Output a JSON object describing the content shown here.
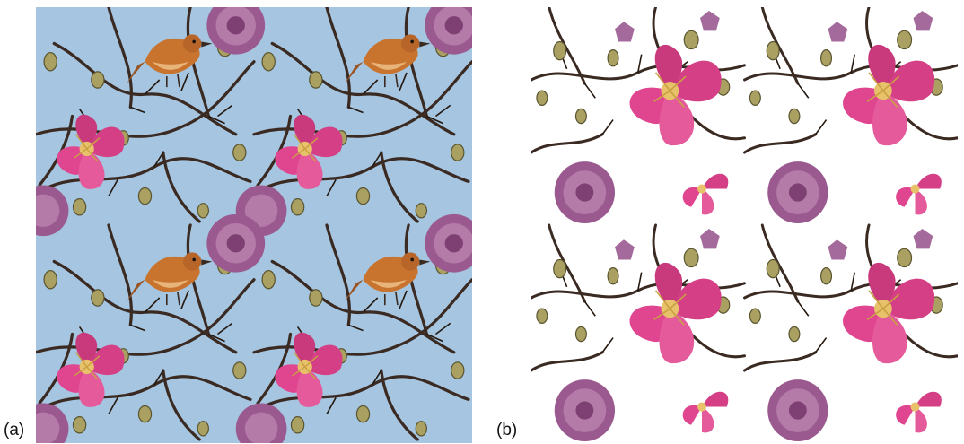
{
  "figure": {
    "panels": [
      {
        "label": "(a)",
        "background": "#a5c5e0",
        "motifs": [
          "bird",
          "pink-lily",
          "purple-peony",
          "branch-with-buds"
        ]
      },
      {
        "label": "(b)",
        "background": "#ffffff",
        "motifs": [
          "pink-lily",
          "purple-peony",
          "branch-with-buds"
        ]
      }
    ]
  },
  "colors": {
    "sky_blue": "#a5c5e0",
    "pink": "#e0458f",
    "purple": "#9b5a8f",
    "bird_orange": "#c8742e",
    "branch_dark": "#3a2a22",
    "bud_olive": "#a9a061"
  }
}
